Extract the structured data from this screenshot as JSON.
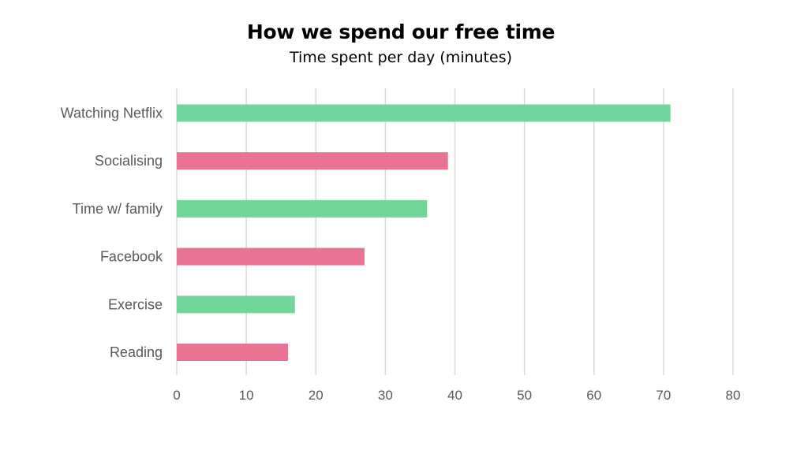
{
  "chart_data": {
    "type": "bar",
    "orientation": "horizontal",
    "title": "How we spend our free time",
    "subtitle": "Time spent per day (minutes)",
    "categories": [
      "Watching Netflix",
      "Socialising",
      "Time w/ family",
      "Facebook",
      "Exercise",
      "Reading"
    ],
    "values": [
      71,
      39,
      36,
      27,
      17,
      16
    ],
    "bar_colors": [
      "#72d69b",
      "#e97393",
      "#72d69b",
      "#e97393",
      "#72d69b",
      "#e97393"
    ],
    "xlim": [
      0,
      80
    ],
    "xticks": [
      "0",
      "10",
      "20",
      "30",
      "40",
      "50",
      "60",
      "70",
      "80"
    ],
    "grid": "vertical",
    "legend": "none"
  }
}
